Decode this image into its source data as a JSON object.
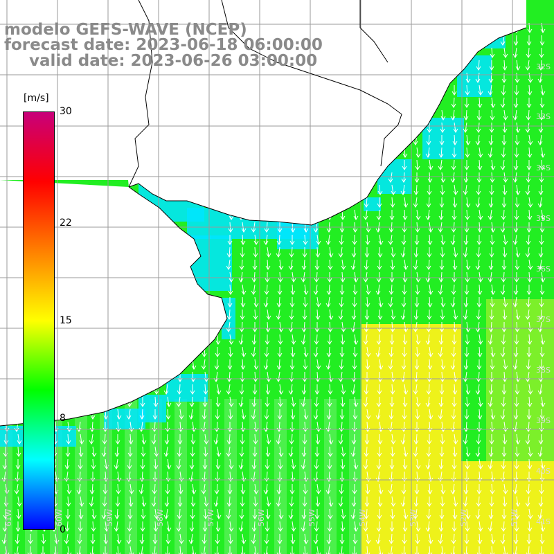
{
  "title": {
    "line1": "modelo GEFS-WAVE (NCEP)",
    "line2": "forecast date: 2023-06-18 06:00:00",
    "line3": "valid date: 2023-06-26 03:00:00"
  },
  "colorbar": {
    "unit": "[m/s]",
    "ticks": [
      "30",
      "22",
      "15",
      "8",
      "0"
    ],
    "tick_values": [
      30,
      22,
      15,
      8,
      0
    ],
    "range": [
      0,
      30
    ],
    "colors": [
      "#0000ff",
      "#00ffff",
      "#00ff00",
      "#ffff00",
      "#ff8000",
      "#ff0000",
      "#c8007a"
    ]
  },
  "map": {
    "lat_labels": [
      "32S",
      "33S",
      "34S",
      "35S",
      "36S",
      "37S",
      "38S",
      "39S",
      "40S",
      "41S"
    ],
    "lon_labels": [
      "61W",
      "60W",
      "59W",
      "58W",
      "57W",
      "56W",
      "55W",
      "54W",
      "53W",
      "52W",
      "51W"
    ],
    "land_color": "#ffffff",
    "grid_color": "#9a9a9a",
    "coast_color": "#000000",
    "arrow_color": "#ffffff",
    "field_colors": {
      "low": "#00e5ff",
      "mid": "#22ee22",
      "high": "#eef21a"
    }
  }
}
